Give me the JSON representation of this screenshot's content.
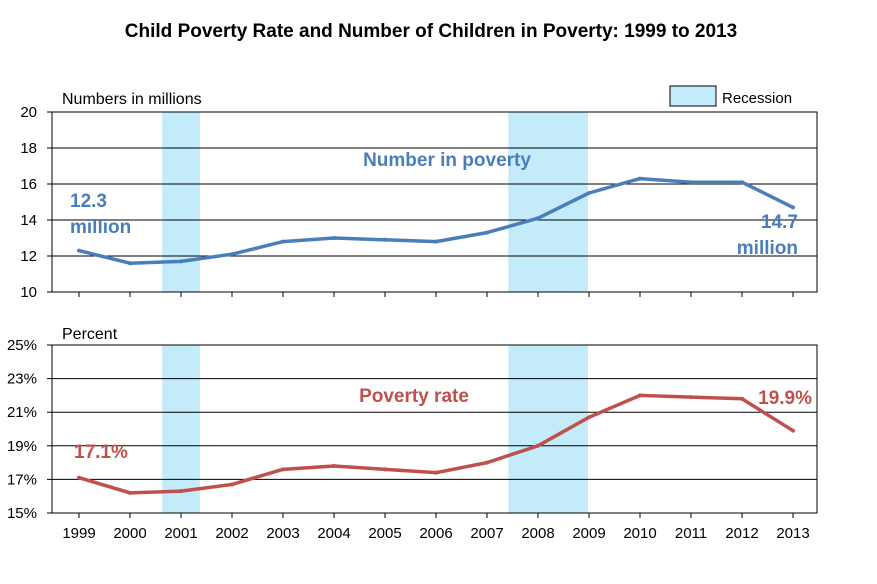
{
  "chart_data": {
    "title": "Child Poverty Rate and Number of Children in Poverty: 1999 to 2013",
    "legend": {
      "label": "Recession",
      "color": "#c4ebfa"
    },
    "x": [
      "1999",
      "2000",
      "2001",
      "2002",
      "2003",
      "2004",
      "2005",
      "2006",
      "2007",
      "2008",
      "2009",
      "2010",
      "2011",
      "2012",
      "2013"
    ],
    "recessions": [
      {
        "start": 2000.63,
        "end": 2001.37
      },
      {
        "start": 2007.42,
        "end": 2008.98
      }
    ],
    "panels": [
      {
        "type": "line",
        "unit_label": "Numbers in millions",
        "series_name": "Number in poverty",
        "color": "#4a7ebb",
        "ylim": [
          10,
          20
        ],
        "yticks": [
          "10",
          "12",
          "14",
          "16",
          "18",
          "20"
        ],
        "values": [
          12.3,
          11.6,
          11.7,
          12.1,
          12.8,
          13.0,
          12.9,
          12.8,
          13.3,
          14.1,
          15.5,
          16.3,
          16.1,
          16.1,
          14.7
        ],
        "start_label": [
          "12.3",
          "million"
        ],
        "end_label": [
          "14.7",
          "million"
        ]
      },
      {
        "type": "line",
        "unit_label": "Percent",
        "series_name": "Poverty rate",
        "color": "#c0504d",
        "ylim": [
          15,
          25
        ],
        "yticks": [
          "15%",
          "17%",
          "19%",
          "21%",
          "23%",
          "25%"
        ],
        "values": [
          17.1,
          16.2,
          16.3,
          16.7,
          17.6,
          17.8,
          17.6,
          17.4,
          18.0,
          19.0,
          20.7,
          22.0,
          21.9,
          21.8,
          19.9
        ],
        "start_label": "17.1%",
        "end_label": "19.9%"
      }
    ]
  }
}
